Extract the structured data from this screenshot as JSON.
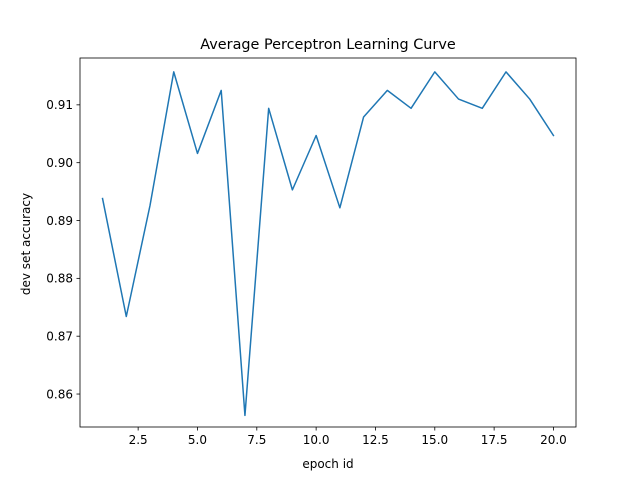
{
  "chart_data": {
    "type": "line",
    "title": "Average Perceptron Learning Curve",
    "xlabel": "epoch id",
    "ylabel": "dev set accuracy",
    "xlim": [
      0.05,
      20.95
    ],
    "ylim": [
      0.8543,
      0.9181
    ],
    "grid": false,
    "legend": "none",
    "xticks": [
      2.5,
      5.0,
      7.5,
      10.0,
      12.5,
      15.0,
      17.5,
      20.0
    ],
    "xtick_labels": [
      "2.5",
      "5.0",
      "7.5",
      "10.0",
      "12.5",
      "15.0",
      "17.5",
      "20.0"
    ],
    "yticks": [
      0.86,
      0.87,
      0.88,
      0.89,
      0.9,
      0.91
    ],
    "ytick_labels": [
      "0.86",
      "0.87",
      "0.88",
      "0.89",
      "0.90",
      "0.91"
    ],
    "series": [
      {
        "color": "#1f77b4",
        "x": [
          1,
          2,
          3,
          4,
          5,
          6,
          7,
          8,
          9,
          10,
          11,
          12,
          13,
          14,
          15,
          16,
          17,
          18,
          19,
          20
        ],
        "y": [
          0.8938,
          0.8734,
          0.8926,
          0.9157,
          0.9016,
          0.9125,
          0.8563,
          0.9094,
          0.8953,
          0.9047,
          0.8922,
          0.9079,
          0.9125,
          0.9094,
          0.9157,
          0.911,
          0.9094,
          0.9157,
          0.911,
          0.9047
        ]
      }
    ]
  }
}
